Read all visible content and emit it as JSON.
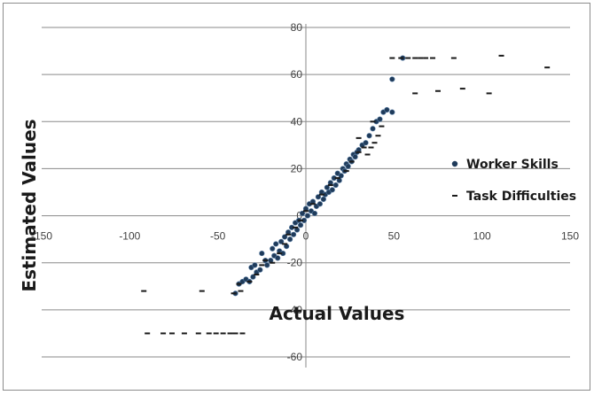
{
  "chart_data": {
    "type": "scatter",
    "xlabel": "Actual Values",
    "ylabel": "Estimated Values",
    "xlim": [
      -150,
      150
    ],
    "ylim": [
      -60,
      80
    ],
    "x_ticks": [
      -150,
      -100,
      -50,
      0,
      50,
      100,
      150
    ],
    "y_ticks": [
      -60,
      -40,
      -20,
      0,
      20,
      40,
      60,
      80
    ],
    "grid": "horizontal",
    "legend_position": "right",
    "series": [
      {
        "name": "Worker Skills",
        "marker": "circle",
        "color": "#1f3b5a",
        "points": [
          [
            -40,
            -33
          ],
          [
            -38,
            -29
          ],
          [
            -36,
            -28
          ],
          [
            -34,
            -27
          ],
          [
            -32,
            -28
          ],
          [
            -30,
            -26
          ],
          [
            -31,
            -22
          ],
          [
            -29,
            -21
          ],
          [
            -28,
            -24
          ],
          [
            -26,
            -23
          ],
          [
            -25,
            -16
          ],
          [
            -23,
            -19
          ],
          [
            -22,
            -21
          ],
          [
            -20,
            -19
          ],
          [
            -19,
            -14
          ],
          [
            -18,
            -17
          ],
          [
            -17,
            -12
          ],
          [
            -16,
            -18
          ],
          [
            -15,
            -15
          ],
          [
            -14,
            -11
          ],
          [
            -13,
            -16
          ],
          [
            -12,
            -9
          ],
          [
            -11,
            -13
          ],
          [
            -10,
            -7
          ],
          [
            -9,
            -10
          ],
          [
            -8,
            -5
          ],
          [
            -7,
            -8
          ],
          [
            -6,
            -3
          ],
          [
            -5,
            -6
          ],
          [
            -4,
            -2
          ],
          [
            -3,
            -4
          ],
          [
            -2,
            1
          ],
          [
            -1,
            -2
          ],
          [
            0,
            3
          ],
          [
            1,
            0
          ],
          [
            2,
            5
          ],
          [
            3,
            2
          ],
          [
            4,
            6
          ],
          [
            5,
            1
          ],
          [
            6,
            4
          ],
          [
            7,
            8
          ],
          [
            8,
            5
          ],
          [
            9,
            10
          ],
          [
            10,
            7
          ],
          [
            11,
            9
          ],
          [
            12,
            12
          ],
          [
            13,
            10
          ],
          [
            14,
            14
          ],
          [
            15,
            11
          ],
          [
            16,
            16
          ],
          [
            17,
            13
          ],
          [
            18,
            18
          ],
          [
            19,
            15
          ],
          [
            20,
            17
          ],
          [
            21,
            20
          ],
          [
            22,
            19
          ],
          [
            23,
            22
          ],
          [
            24,
            21
          ],
          [
            25,
            24
          ],
          [
            26,
            23
          ],
          [
            27,
            26
          ],
          [
            28,
            25
          ],
          [
            29,
            27
          ],
          [
            30,
            28
          ],
          [
            32,
            30
          ],
          [
            34,
            31
          ],
          [
            36,
            34
          ],
          [
            38,
            37
          ],
          [
            40,
            40
          ],
          [
            42,
            41
          ],
          [
            44,
            44
          ],
          [
            46,
            45
          ],
          [
            49,
            44
          ],
          [
            49,
            58
          ],
          [
            55,
            67
          ]
        ]
      },
      {
        "name": "Task Difficulties",
        "marker": "dash",
        "color": "#1a1a1a",
        "points": [
          [
            -92,
            -32
          ],
          [
            -59,
            -32
          ],
          [
            -37,
            -32
          ],
          [
            -90,
            -50
          ],
          [
            -81,
            -50
          ],
          [
            -76,
            -50
          ],
          [
            -69,
            -50
          ],
          [
            -61,
            -50
          ],
          [
            -55,
            -50
          ],
          [
            -51,
            -50
          ],
          [
            -47,
            -50
          ],
          [
            -43,
            -50
          ],
          [
            -40,
            -50
          ],
          [
            -36,
            -50
          ],
          [
            -41,
            -33
          ],
          [
            -38,
            -29
          ],
          [
            -32,
            -28
          ],
          [
            -28,
            -25
          ],
          [
            -25,
            -21
          ],
          [
            -23,
            -19
          ],
          [
            -19,
            -20
          ],
          [
            -15,
            -16
          ],
          [
            -12,
            -12
          ],
          [
            -10,
            -8
          ],
          [
            -6,
            -5
          ],
          [
            -3,
            -2
          ],
          [
            0,
            2
          ],
          [
            4,
            5
          ],
          [
            9,
            9
          ],
          [
            14,
            13
          ],
          [
            18,
            16
          ],
          [
            23,
            19
          ],
          [
            26,
            23
          ],
          [
            30,
            27
          ],
          [
            33,
            29
          ],
          [
            35,
            26
          ],
          [
            37,
            29
          ],
          [
            39,
            31
          ],
          [
            41,
            34
          ],
          [
            43,
            38
          ],
          [
            30,
            33
          ],
          [
            38,
            40
          ],
          [
            49,
            67
          ],
          [
            54,
            67
          ],
          [
            58,
            67
          ],
          [
            62,
            67
          ],
          [
            65,
            67
          ],
          [
            68,
            67
          ],
          [
            72,
            67
          ],
          [
            84,
            67
          ],
          [
            111,
            68
          ],
          [
            62,
            52
          ],
          [
            75,
            53
          ],
          [
            89,
            54
          ],
          [
            104,
            52
          ],
          [
            137,
            63
          ]
        ]
      }
    ]
  }
}
